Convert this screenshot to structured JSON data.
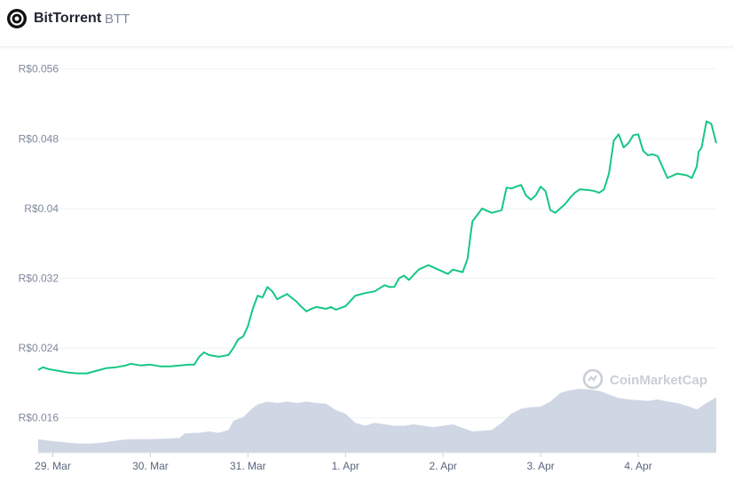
{
  "header": {
    "name": "BitTorrent",
    "symbol": "BTT"
  },
  "watermark": {
    "text": "CoinMarketCap",
    "icon": "coinmarketcap-logo-icon"
  },
  "colors": {
    "price_line": "#16c784",
    "volume_fill": "#cfd6e4",
    "grid": "#eff2f5"
  },
  "chart_data": {
    "type": "line",
    "ylim": [
      0.012,
      0.058
    ],
    "y_ticks": [
      0.016,
      0.024,
      0.032,
      0.04,
      0.048,
      0.056
    ],
    "y_tick_labels": [
      "R$0.016",
      "R$0.024",
      "R$0.032",
      "R$0.04",
      "R$0.048",
      "R$0.056"
    ],
    "x_ticks": [
      0.5,
      1.5,
      2.5,
      3.5,
      4.5,
      5.5,
      6.5
    ],
    "x_tick_labels": [
      "29. Mar",
      "30. Mar",
      "31. Mar",
      "1. Apr",
      "2. Apr",
      "3. Apr",
      "4. Apr"
    ],
    "xlim": [
      0.35,
      7.3
    ],
    "grid": true,
    "series": [
      {
        "values_x": [
          0.35,
          0.4,
          0.45,
          0.55,
          0.65,
          0.75,
          0.85,
          0.95,
          1.05,
          1.15,
          1.25,
          1.3,
          1.4,
          1.5,
          1.6,
          1.7,
          1.8,
          1.9,
          1.95,
          2.0,
          2.05,
          2.1,
          2.2,
          2.3,
          2.35,
          2.4,
          2.45,
          2.5,
          2.55,
          2.6,
          2.65,
          2.7,
          2.75,
          2.8,
          2.9,
          3.0,
          3.05,
          3.1,
          3.15,
          3.2,
          3.25,
          3.3,
          3.35,
          3.4,
          3.5,
          3.6,
          3.7,
          3.8,
          3.9,
          3.95,
          4.0,
          4.05,
          4.1,
          4.15,
          4.25,
          4.35,
          4.45,
          4.55,
          4.6,
          4.7,
          4.75,
          4.8,
          4.9,
          5.0,
          5.1,
          5.15,
          5.2,
          5.3,
          5.35,
          5.4,
          5.45,
          5.5,
          5.55,
          5.6,
          5.65,
          5.7,
          5.75,
          5.8,
          5.85,
          5.9,
          6.0,
          6.05,
          6.1,
          6.15,
          6.2,
          6.25,
          6.3,
          6.35,
          6.4,
          6.45,
          6.5,
          6.55,
          6.6,
          6.65,
          6.7,
          6.8,
          6.9,
          7.0,
          7.05,
          7.1,
          7.12,
          7.15,
          7.2,
          7.25,
          7.3
        ],
        "values_y": [
          0.0215,
          0.0218,
          0.0216,
          0.0214,
          0.0212,
          0.0211,
          0.0211,
          0.0214,
          0.0217,
          0.0218,
          0.022,
          0.0222,
          0.022,
          0.0221,
          0.0219,
          0.0219,
          0.022,
          0.0221,
          0.0221,
          0.023,
          0.0235,
          0.0232,
          0.023,
          0.0232,
          0.024,
          0.025,
          0.0253,
          0.0265,
          0.0285,
          0.03,
          0.0298,
          0.031,
          0.0305,
          0.0296,
          0.0302,
          0.0293,
          0.0287,
          0.0282,
          0.0285,
          0.0287,
          0.0286,
          0.0285,
          0.0287,
          0.0284,
          0.0288,
          0.03,
          0.0303,
          0.0305,
          0.0312,
          0.031,
          0.031,
          0.032,
          0.0323,
          0.0318,
          0.033,
          0.0335,
          0.033,
          0.0325,
          0.033,
          0.0327,
          0.0342,
          0.0385,
          0.04,
          0.0395,
          0.0398,
          0.0424,
          0.0423,
          0.0427,
          0.0415,
          0.041,
          0.0415,
          0.0425,
          0.042,
          0.0398,
          0.0395,
          0.04,
          0.0405,
          0.0412,
          0.0418,
          0.0422,
          0.0421,
          0.042,
          0.0418,
          0.0422,
          0.044,
          0.0478,
          0.0485,
          0.047,
          0.0475,
          0.0484,
          0.0485,
          0.0466,
          0.0461,
          0.0462,
          0.046,
          0.0435,
          0.044,
          0.0438,
          0.0435,
          0.0448,
          0.0465,
          0.047,
          0.05,
          0.0497,
          0.0475
        ]
      }
    ],
    "volume": {
      "values_x": [
        0.35,
        0.45,
        0.6,
        0.75,
        0.9,
        1.0,
        1.1,
        1.2,
        1.3,
        1.5,
        1.7,
        1.8,
        1.85,
        1.95,
        2.0,
        2.1,
        2.2,
        2.3,
        2.35,
        2.45,
        2.55,
        2.6,
        2.7,
        2.8,
        2.9,
        3.0,
        3.1,
        3.2,
        3.3,
        3.4,
        3.5,
        3.6,
        3.7,
        3.8,
        3.9,
        4.0,
        4.1,
        4.2,
        4.3,
        4.4,
        4.5,
        4.6,
        4.7,
        4.8,
        4.9,
        5.0,
        5.1,
        5.2,
        5.3,
        5.4,
        5.5,
        5.6,
        5.7,
        5.8,
        5.9,
        6.0,
        6.1,
        6.2,
        6.3,
        6.4,
        6.5,
        6.6,
        6.7,
        6.8,
        6.9,
        7.0,
        7.1,
        7.2,
        7.3
      ],
      "values": [
        0.19,
        0.17,
        0.15,
        0.13,
        0.13,
        0.14,
        0.16,
        0.18,
        0.19,
        0.19,
        0.2,
        0.21,
        0.27,
        0.28,
        0.28,
        0.3,
        0.28,
        0.32,
        0.45,
        0.5,
        0.63,
        0.68,
        0.72,
        0.7,
        0.72,
        0.7,
        0.72,
        0.7,
        0.69,
        0.6,
        0.55,
        0.42,
        0.38,
        0.42,
        0.4,
        0.38,
        0.38,
        0.4,
        0.38,
        0.36,
        0.38,
        0.4,
        0.35,
        0.3,
        0.31,
        0.32,
        0.42,
        0.55,
        0.62,
        0.64,
        0.65,
        0.72,
        0.84,
        0.88,
        0.9,
        0.89,
        0.87,
        0.82,
        0.77,
        0.75,
        0.74,
        0.73,
        0.75,
        0.72,
        0.7,
        0.66,
        0.61,
        0.7,
        0.78
      ]
    }
  }
}
